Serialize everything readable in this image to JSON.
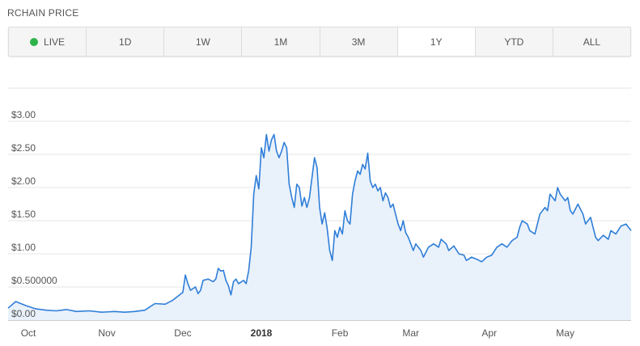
{
  "header": {
    "title": "RCHAIN PRICE"
  },
  "range": {
    "live_label": "LIVE",
    "buttons": [
      "1D",
      "1W",
      "1M",
      "3M",
      "1Y",
      "YTD",
      "ALL"
    ],
    "active": "1Y",
    "live_color": "#2eb24a"
  },
  "colors": {
    "line": "#2f7ed8",
    "fill": "#e9f1fb",
    "grid": "#e6e6e6"
  },
  "chart_data": {
    "type": "area",
    "title": "RCHAIN PRICE",
    "xlabel": "",
    "ylabel": "",
    "ylim": [
      0,
      3.0
    ],
    "y_ticks": [
      {
        "value": 0,
        "label": "$0.00"
      },
      {
        "value": 0.5,
        "label": "$0.500000"
      },
      {
        "value": 1.0,
        "label": "$1.00"
      },
      {
        "value": 1.5,
        "label": "$1.50"
      },
      {
        "value": 2.0,
        "label": "$2.00"
      },
      {
        "value": 2.5,
        "label": "$2.50"
      },
      {
        "value": 3.0,
        "label": "$3.00"
      }
    ],
    "x_ticks": [
      {
        "date": "2017-10-01",
        "label": "Oct"
      },
      {
        "date": "2017-11-01",
        "label": "Nov"
      },
      {
        "date": "2017-12-01",
        "label": "Dec"
      },
      {
        "date": "2018-01-01",
        "label": "2018",
        "bold": true
      },
      {
        "date": "2018-02-01",
        "label": "Feb"
      },
      {
        "date": "2018-03-01",
        "label": "Mar"
      },
      {
        "date": "2018-04-01",
        "label": "Apr"
      },
      {
        "date": "2018-05-01",
        "label": "May"
      }
    ],
    "xlim": [
      "2017-09-23",
      "2018-05-27"
    ],
    "grid": true,
    "series": [
      {
        "points": [
          [
            "2017-09-23",
            0.18
          ],
          [
            "2017-09-26",
            0.28
          ],
          [
            "2017-09-30",
            0.22
          ],
          [
            "2017-10-04",
            0.17
          ],
          [
            "2017-10-08",
            0.15
          ],
          [
            "2017-10-12",
            0.14
          ],
          [
            "2017-10-16",
            0.16
          ],
          [
            "2017-10-20",
            0.13
          ],
          [
            "2017-10-25",
            0.14
          ],
          [
            "2017-10-30",
            0.12
          ],
          [
            "2017-11-04",
            0.13
          ],
          [
            "2017-11-08",
            0.12
          ],
          [
            "2017-11-12",
            0.13
          ],
          [
            "2017-11-16",
            0.15
          ],
          [
            "2017-11-18",
            0.2
          ],
          [
            "2017-11-20",
            0.25
          ],
          [
            "2017-11-24",
            0.24
          ],
          [
            "2017-11-27",
            0.3
          ],
          [
            "2017-11-29",
            0.36
          ],
          [
            "2017-12-01",
            0.42
          ],
          [
            "2017-12-02",
            0.68
          ],
          [
            "2017-12-03",
            0.55
          ],
          [
            "2017-12-04",
            0.45
          ],
          [
            "2017-12-06",
            0.5
          ],
          [
            "2017-12-07",
            0.4
          ],
          [
            "2017-12-08",
            0.45
          ],
          [
            "2017-12-09",
            0.6
          ],
          [
            "2017-12-11",
            0.62
          ],
          [
            "2017-12-13",
            0.58
          ],
          [
            "2017-12-14",
            0.62
          ],
          [
            "2017-12-15",
            0.78
          ],
          [
            "2017-12-16",
            0.74
          ],
          [
            "2017-12-17",
            0.75
          ],
          [
            "2017-12-18",
            0.6
          ],
          [
            "2017-12-19",
            0.52
          ],
          [
            "2017-12-20",
            0.38
          ],
          [
            "2017-12-21",
            0.58
          ],
          [
            "2017-12-22",
            0.62
          ],
          [
            "2017-12-23",
            0.55
          ],
          [
            "2017-12-25",
            0.6
          ],
          [
            "2017-12-26",
            0.55
          ],
          [
            "2017-12-27",
            0.75
          ],
          [
            "2017-12-28",
            1.1
          ],
          [
            "2017-12-29",
            1.9
          ],
          [
            "2017-12-30",
            2.18
          ],
          [
            "2017-12-31",
            1.98
          ],
          [
            "2018-01-01",
            2.6
          ],
          [
            "2018-01-02",
            2.45
          ],
          [
            "2018-01-03",
            2.8
          ],
          [
            "2018-01-04",
            2.55
          ],
          [
            "2018-01-05",
            2.72
          ],
          [
            "2018-01-06",
            2.8
          ],
          [
            "2018-01-07",
            2.55
          ],
          [
            "2018-01-08",
            2.45
          ],
          [
            "2018-01-09",
            2.55
          ],
          [
            "2018-01-10",
            2.68
          ],
          [
            "2018-01-11",
            2.6
          ],
          [
            "2018-01-12",
            2.05
          ],
          [
            "2018-01-13",
            1.85
          ],
          [
            "2018-01-14",
            1.7
          ],
          [
            "2018-01-15",
            2.05
          ],
          [
            "2018-01-16",
            2.0
          ],
          [
            "2018-01-17",
            1.72
          ],
          [
            "2018-01-18",
            1.85
          ],
          [
            "2018-01-19",
            1.7
          ],
          [
            "2018-01-20",
            1.85
          ],
          [
            "2018-01-21",
            2.15
          ],
          [
            "2018-01-22",
            2.45
          ],
          [
            "2018-01-23",
            2.3
          ],
          [
            "2018-01-24",
            1.7
          ],
          [
            "2018-01-25",
            1.45
          ],
          [
            "2018-01-26",
            1.62
          ],
          [
            "2018-01-27",
            1.38
          ],
          [
            "2018-01-28",
            1.05
          ],
          [
            "2018-01-29",
            0.9
          ],
          [
            "2018-01-30",
            1.35
          ],
          [
            "2018-01-31",
            1.25
          ],
          [
            "2018-02-01",
            1.4
          ],
          [
            "2018-02-02",
            1.3
          ],
          [
            "2018-02-03",
            1.65
          ],
          [
            "2018-02-04",
            1.5
          ],
          [
            "2018-02-05",
            1.45
          ],
          [
            "2018-02-06",
            1.9
          ],
          [
            "2018-02-07",
            2.1
          ],
          [
            "2018-02-08",
            2.25
          ],
          [
            "2018-02-09",
            2.2
          ],
          [
            "2018-02-10",
            2.35
          ],
          [
            "2018-02-11",
            2.28
          ],
          [
            "2018-02-12",
            2.52
          ],
          [
            "2018-02-13",
            2.1
          ],
          [
            "2018-02-14",
            2.0
          ],
          [
            "2018-02-15",
            2.05
          ],
          [
            "2018-02-16",
            1.95
          ],
          [
            "2018-02-17",
            2.0
          ],
          [
            "2018-02-18",
            1.8
          ],
          [
            "2018-02-19",
            1.92
          ],
          [
            "2018-02-20",
            1.85
          ],
          [
            "2018-02-21",
            1.7
          ],
          [
            "2018-02-22",
            1.75
          ],
          [
            "2018-02-23",
            1.6
          ],
          [
            "2018-02-24",
            1.45
          ],
          [
            "2018-02-25",
            1.35
          ],
          [
            "2018-02-26",
            1.5
          ],
          [
            "2018-02-27",
            1.32
          ],
          [
            "2018-02-28",
            1.25
          ],
          [
            "2018-03-02",
            1.05
          ],
          [
            "2018-03-03",
            1.15
          ],
          [
            "2018-03-05",
            1.05
          ],
          [
            "2018-03-06",
            0.95
          ],
          [
            "2018-03-08",
            1.1
          ],
          [
            "2018-03-10",
            1.15
          ],
          [
            "2018-03-12",
            1.1
          ],
          [
            "2018-03-13",
            1.22
          ],
          [
            "2018-03-15",
            1.15
          ],
          [
            "2018-03-16",
            1.05
          ],
          [
            "2018-03-18",
            1.12
          ],
          [
            "2018-03-20",
            1.0
          ],
          [
            "2018-03-22",
            0.98
          ],
          [
            "2018-03-23",
            0.9
          ],
          [
            "2018-03-25",
            0.95
          ],
          [
            "2018-03-27",
            0.92
          ],
          [
            "2018-03-29",
            0.88
          ],
          [
            "2018-03-31",
            0.95
          ],
          [
            "2018-04-02",
            0.98
          ],
          [
            "2018-04-04",
            1.1
          ],
          [
            "2018-04-06",
            1.15
          ],
          [
            "2018-04-08",
            1.1
          ],
          [
            "2018-04-10",
            1.2
          ],
          [
            "2018-04-12",
            1.25
          ],
          [
            "2018-04-13",
            1.4
          ],
          [
            "2018-04-14",
            1.5
          ],
          [
            "2018-04-16",
            1.45
          ],
          [
            "2018-04-17",
            1.35
          ],
          [
            "2018-04-19",
            1.3
          ],
          [
            "2018-04-20",
            1.45
          ],
          [
            "2018-04-21",
            1.6
          ],
          [
            "2018-04-23",
            1.7
          ],
          [
            "2018-04-24",
            1.65
          ],
          [
            "2018-04-25",
            1.9
          ],
          [
            "2018-04-27",
            1.8
          ],
          [
            "2018-04-28",
            2.0
          ],
          [
            "2018-04-29",
            1.9
          ],
          [
            "2018-05-01",
            1.8
          ],
          [
            "2018-05-02",
            1.85
          ],
          [
            "2018-05-03",
            1.65
          ],
          [
            "2018-05-04",
            1.6
          ],
          [
            "2018-05-06",
            1.75
          ],
          [
            "2018-05-08",
            1.6
          ],
          [
            "2018-05-09",
            1.45
          ],
          [
            "2018-05-11",
            1.55
          ],
          [
            "2018-05-12",
            1.4
          ],
          [
            "2018-05-13",
            1.25
          ],
          [
            "2018-05-14",
            1.2
          ],
          [
            "2018-05-16",
            1.28
          ],
          [
            "2018-05-18",
            1.22
          ],
          [
            "2018-05-19",
            1.35
          ],
          [
            "2018-05-21",
            1.3
          ],
          [
            "2018-05-23",
            1.42
          ],
          [
            "2018-05-25",
            1.45
          ],
          [
            "2018-05-27",
            1.35
          ]
        ]
      }
    ]
  }
}
